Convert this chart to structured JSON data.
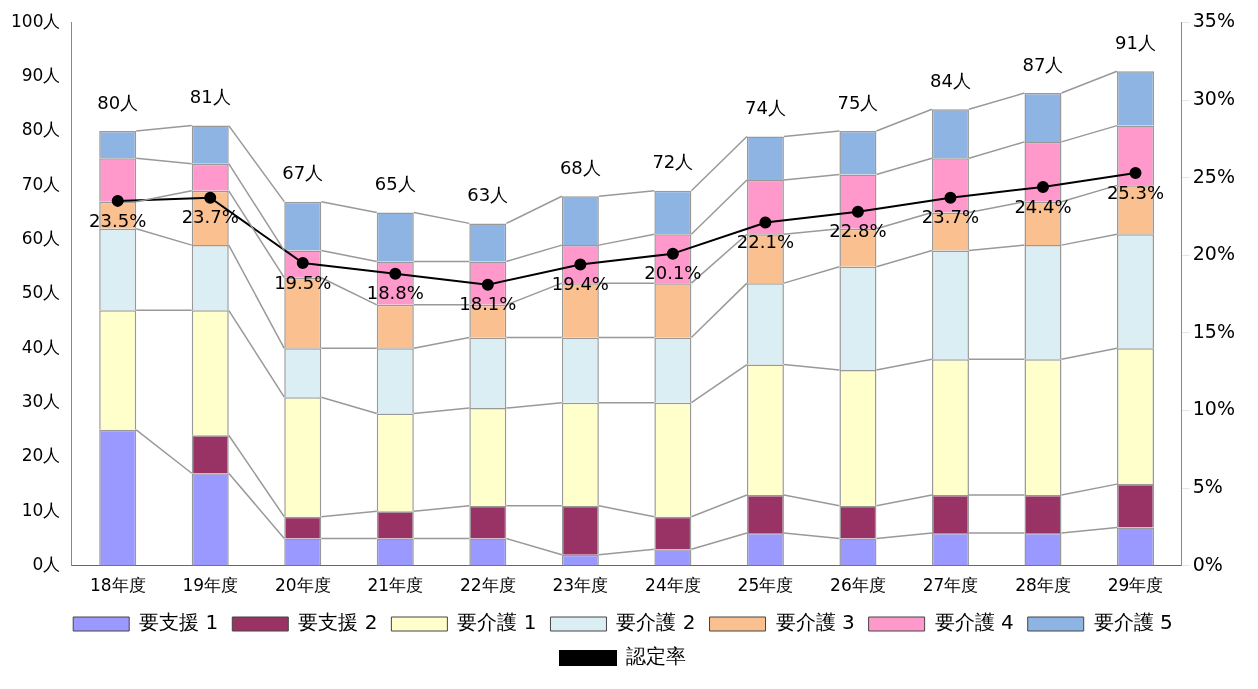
{
  "chart_data": {
    "type": "bar",
    "stacked": true,
    "categories": [
      "18年度",
      "19年度",
      "20年度",
      "21年度",
      "22年度",
      "23年度",
      "24年度",
      "25年度",
      "26年度",
      "27年度",
      "28年度",
      "29年度"
    ],
    "series": [
      {
        "name": "要支援 1",
        "color": "#9999ff",
        "values": [
          25,
          17,
          5,
          5,
          5,
          2,
          3,
          6,
          5,
          6,
          6,
          7
        ]
      },
      {
        "name": "要支援 2",
        "color": "#993366",
        "values": [
          0,
          7,
          4,
          5,
          6,
          9,
          6,
          7,
          6,
          7,
          7,
          8
        ]
      },
      {
        "name": "要介護 1",
        "color": "#ffffcc",
        "values": [
          22,
          23,
          22,
          18,
          18,
          19,
          21,
          24,
          25,
          25,
          25,
          25
        ]
      },
      {
        "name": "要介護 2",
        "color": "#daeef3",
        "values": [
          15,
          12,
          9,
          12,
          13,
          12,
          12,
          15,
          19,
          20,
          21,
          21
        ]
      },
      {
        "name": "要介護 3",
        "color": "#fac090",
        "values": [
          5,
          10,
          13,
          8,
          6,
          10,
          10,
          9,
          7,
          7,
          8,
          9
        ]
      },
      {
        "name": "要介護 4",
        "color": "#ff99cc",
        "values": [
          8,
          5,
          5,
          8,
          8,
          7,
          9,
          10,
          10,
          10,
          11,
          11
        ]
      },
      {
        "name": "要介護 5",
        "color": "#8db4e2",
        "values": [
          5,
          7,
          9,
          9,
          7,
          9,
          8,
          8,
          8,
          9,
          9,
          10
        ]
      },
      {
        "name": "認定率",
        "type": "line",
        "axis": "y2",
        "color": "#000000",
        "marker": "circle",
        "values": [
          23.5,
          23.7,
          19.5,
          18.8,
          18.1,
          19.4,
          20.1,
          22.1,
          22.8,
          23.7,
          24.4,
          25.3
        ],
        "value_labels": [
          "23.5%",
          "23.7%",
          "19.5%",
          "18.8%",
          "18.1%",
          "19.4%",
          "20.1%",
          "22.1%",
          "22.8%",
          "23.7%",
          "24.4%",
          "25.3%"
        ]
      }
    ],
    "annotations": [
      {
        "text": "80人",
        "x": "18年度",
        "y": 80
      },
      {
        "text": "81人",
        "x": "19年度",
        "y": 81
      },
      {
        "text": "67人",
        "x": "20年度",
        "y": 67
      },
      {
        "text": "65人",
        "x": "21年度",
        "y": 65
      },
      {
        "text": "63人",
        "x": "22年度",
        "y": 63
      },
      {
        "text": "68人",
        "x": "23年度",
        "y": 68
      },
      {
        "text": "72人",
        "x": "24年度",
        "y": 69
      },
      {
        "text": "74人",
        "x": "25年度",
        "y": 79
      },
      {
        "text": "75人",
        "x": "26年度",
        "y": 80
      },
      {
        "text": "84人",
        "x": "27年度",
        "y": 84
      },
      {
        "text": "87人",
        "x": "28年度",
        "y": 87
      },
      {
        "text": "91人",
        "x": "29年度",
        "y": 91
      }
    ],
    "ylim": [
      0,
      100
    ],
    "yticks": [
      {
        "value": 0,
        "label": "0人"
      },
      {
        "value": 10,
        "label": "10人"
      },
      {
        "value": 20,
        "label": "20人"
      },
      {
        "value": 30,
        "label": "30人"
      },
      {
        "value": 40,
        "label": "40人"
      },
      {
        "value": 50,
        "label": "50人"
      },
      {
        "value": 60,
        "label": "60人"
      },
      {
        "value": 70,
        "label": "70人"
      },
      {
        "value": 80,
        "label": "80人"
      },
      {
        "value": 90,
        "label": "90人"
      },
      {
        "value": 100,
        "label": "100人"
      }
    ],
    "y2lim": [
      0,
      35
    ],
    "y2ticks": [
      {
        "value": 0,
        "label": "0%"
      },
      {
        "value": 5,
        "label": "5%"
      },
      {
        "value": 10,
        "label": "10%"
      },
      {
        "value": 15,
        "label": "15%"
      },
      {
        "value": 20,
        "label": "20%"
      },
      {
        "value": 25,
        "label": "25%"
      },
      {
        "value": 30,
        "label": "30%"
      },
      {
        "value": 35,
        "label": "35%"
      }
    ],
    "grid": false,
    "legend": "bottom"
  }
}
